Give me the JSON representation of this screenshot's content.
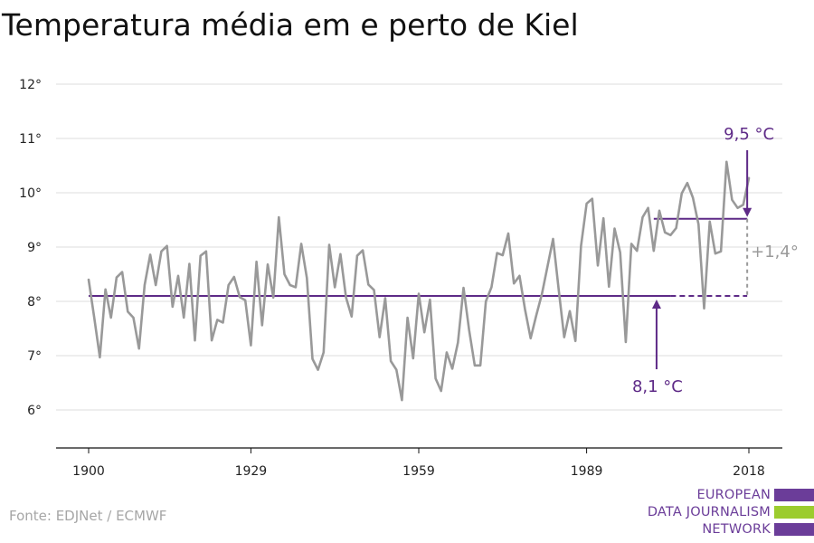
{
  "chart_data": {
    "type": "line",
    "title": "Temperatura média em e perto de Kiel",
    "xlabel": "",
    "ylabel": "",
    "x_ticks": [
      "1900",
      "1929",
      "1959",
      "1989",
      "2018"
    ],
    "y_ticks": [
      "6°",
      "7°",
      "8°",
      "9°",
      "10°",
      "11°",
      "12°"
    ],
    "xlim": [
      1900,
      2018
    ],
    "ylim": [
      5.3,
      12.5
    ],
    "grid": true,
    "series": [
      {
        "color": "#999999",
        "x": [
          1900,
          1901,
          1902,
          1903,
          1904,
          1905,
          1906,
          1907,
          1908,
          1909,
          1910,
          1911,
          1912,
          1913,
          1914,
          1915,
          1916,
          1917,
          1918,
          1919,
          1920,
          1921,
          1922,
          1923,
          1924,
          1925,
          1926,
          1927,
          1928,
          1929,
          1930,
          1931,
          1932,
          1933,
          1934,
          1935,
          1936,
          1937,
          1938,
          1939,
          1940,
          1941,
          1942,
          1943,
          1944,
          1945,
          1946,
          1947,
          1948,
          1949,
          1950,
          1951,
          1952,
          1953,
          1954,
          1955,
          1956,
          1957,
          1958,
          1959,
          1960,
          1961,
          1962,
          1963,
          1964,
          1965,
          1966,
          1967,
          1968,
          1969,
          1970,
          1971,
          1972,
          1973,
          1974,
          1975,
          1976,
          1977,
          1978,
          1979,
          1980,
          1981,
          1982,
          1983,
          1984,
          1985,
          1986,
          1987,
          1988,
          1989,
          1990,
          1991,
          1992,
          1993,
          1994,
          1995,
          1996,
          1997,
          1998,
          1999,
          2000,
          2001,
          2002,
          2003,
          2004,
          2005,
          2006,
          2007,
          2008,
          2009,
          2010,
          2011,
          2012,
          2013,
          2014,
          2015,
          2016,
          2017,
          2018
        ],
        "values": [
          8.4,
          7.7,
          6.97,
          8.22,
          7.7,
          8.44,
          8.54,
          7.81,
          7.7,
          7.13,
          8.3,
          8.86,
          8.3,
          8.92,
          9.02,
          7.9,
          8.47,
          7.7,
          8.69,
          7.28,
          8.84,
          8.92,
          7.28,
          7.66,
          7.61,
          8.3,
          8.45,
          8.08,
          8.02,
          7.19,
          8.73,
          7.56,
          8.68,
          8.07,
          9.55,
          8.5,
          8.3,
          8.26,
          9.06,
          8.43,
          6.94,
          6.74,
          7.06,
          9.04,
          8.26,
          8.87,
          8.07,
          7.72,
          8.84,
          8.94,
          8.31,
          8.21,
          7.34,
          8.06,
          6.9,
          6.74,
          6.18,
          7.7,
          6.95,
          8.14,
          7.43,
          8.03,
          6.58,
          6.35,
          7.06,
          6.76,
          7.24,
          8.25,
          7.47,
          6.82,
          6.82,
          8.0,
          8.26,
          8.89,
          8.85,
          9.25,
          8.33,
          8.47,
          7.85,
          7.32,
          7.74,
          8.13,
          8.64,
          9.15,
          8.22,
          7.34,
          7.82,
          7.27,
          9.02,
          9.8,
          9.89,
          8.66,
          9.53,
          8.27,
          9.34,
          8.9,
          7.25,
          9.06,
          8.93,
          9.55,
          9.72,
          8.93,
          9.67,
          9.27,
          9.22,
          9.35,
          9.99,
          10.18,
          9.91,
          9.42,
          7.87,
          9.47,
          8.88,
          8.92,
          10.57,
          9.87,
          9.72,
          9.78,
          10.27
        ]
      }
    ],
    "reference_lines": [
      {
        "label": "8,1 °C",
        "value": 8.1,
        "color": "#5e2a87"
      },
      {
        "label": "9,5 °C",
        "value": 9.52,
        "color": "#5e2a87"
      }
    ],
    "difference_label": "+1,4°"
  },
  "source": "Fonte: EDJNet / ECMWF",
  "logo": {
    "lines": [
      "EUROPEAN",
      "DATA JOURNALISM",
      "NETWORK"
    ],
    "colors": [
      "#6b3d99",
      "#9ccc2e",
      "#6b3d99"
    ]
  }
}
